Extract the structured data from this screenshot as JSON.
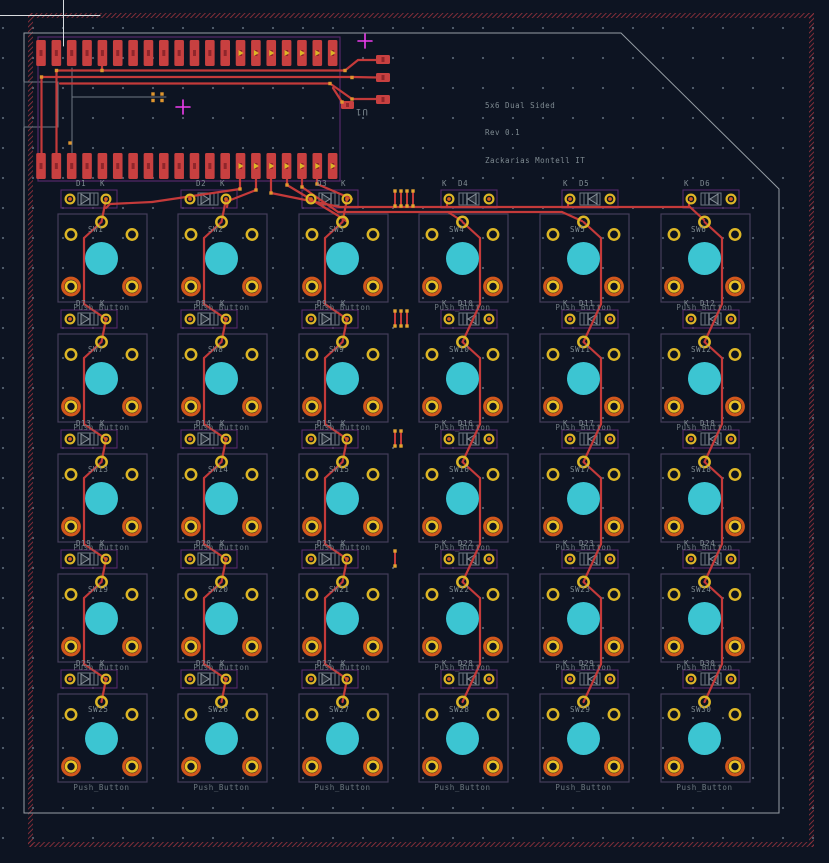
{
  "board": {
    "title_lines": [
      "5x6 Dual Sided",
      "Rev 0.1",
      "Zackarias Montell IT"
    ],
    "u1_ref": "U1",
    "push_button_label": "Push_Button",
    "cathode_label": "K",
    "switches": [
      "SW1",
      "SW2",
      "SW3",
      "SW4",
      "SW5",
      "SW6",
      "SW7",
      "SW8",
      "SW9",
      "SW10",
      "SW11",
      "SW12",
      "SW13",
      "SW14",
      "SW15",
      "SW16",
      "SW17",
      "SW18",
      "SW19",
      "SW20",
      "SW21",
      "SW22",
      "SW23",
      "SW24",
      "SW25",
      "SW26",
      "SW27",
      "SW28",
      "SW29",
      "SW30"
    ],
    "diodes": [
      "D1",
      "D2",
      "D3",
      "D4",
      "D5",
      "D6",
      "D7",
      "D8",
      "D9",
      "D10",
      "D11",
      "D12",
      "D13",
      "D14",
      "D15",
      "D16",
      "D17",
      "D18",
      "D19",
      "D20",
      "D21",
      "D22",
      "D23",
      "D24",
      "D25",
      "D26",
      "D27",
      "D28",
      "D29",
      "D30"
    ]
  },
  "colors": {
    "background": "#0d1422",
    "copper_red": "#c43a3a",
    "pad_red": "#c84040",
    "pad_mark_dark": "#8f262b",
    "hole_cyan": "#3cc5d2",
    "pad_yellow": "#dcb626",
    "pad_yellow_bright": "#eac227",
    "pad_orange": "#d2571c",
    "diode_pad_center": "#d55f1d",
    "via_orange": "#e0962e",
    "ratsnest_dot": "#e2a430",
    "silkscreen": "#7e8a91",
    "courtyard_purple": "#55286a",
    "outline_slate": "#453e5a",
    "fab_gray": "#6f7984",
    "edge_gray": "#969ea5",
    "hatch_red": "#93323c",
    "magenta": "#ee3cee",
    "cursor_white": "#d8dce0"
  }
}
